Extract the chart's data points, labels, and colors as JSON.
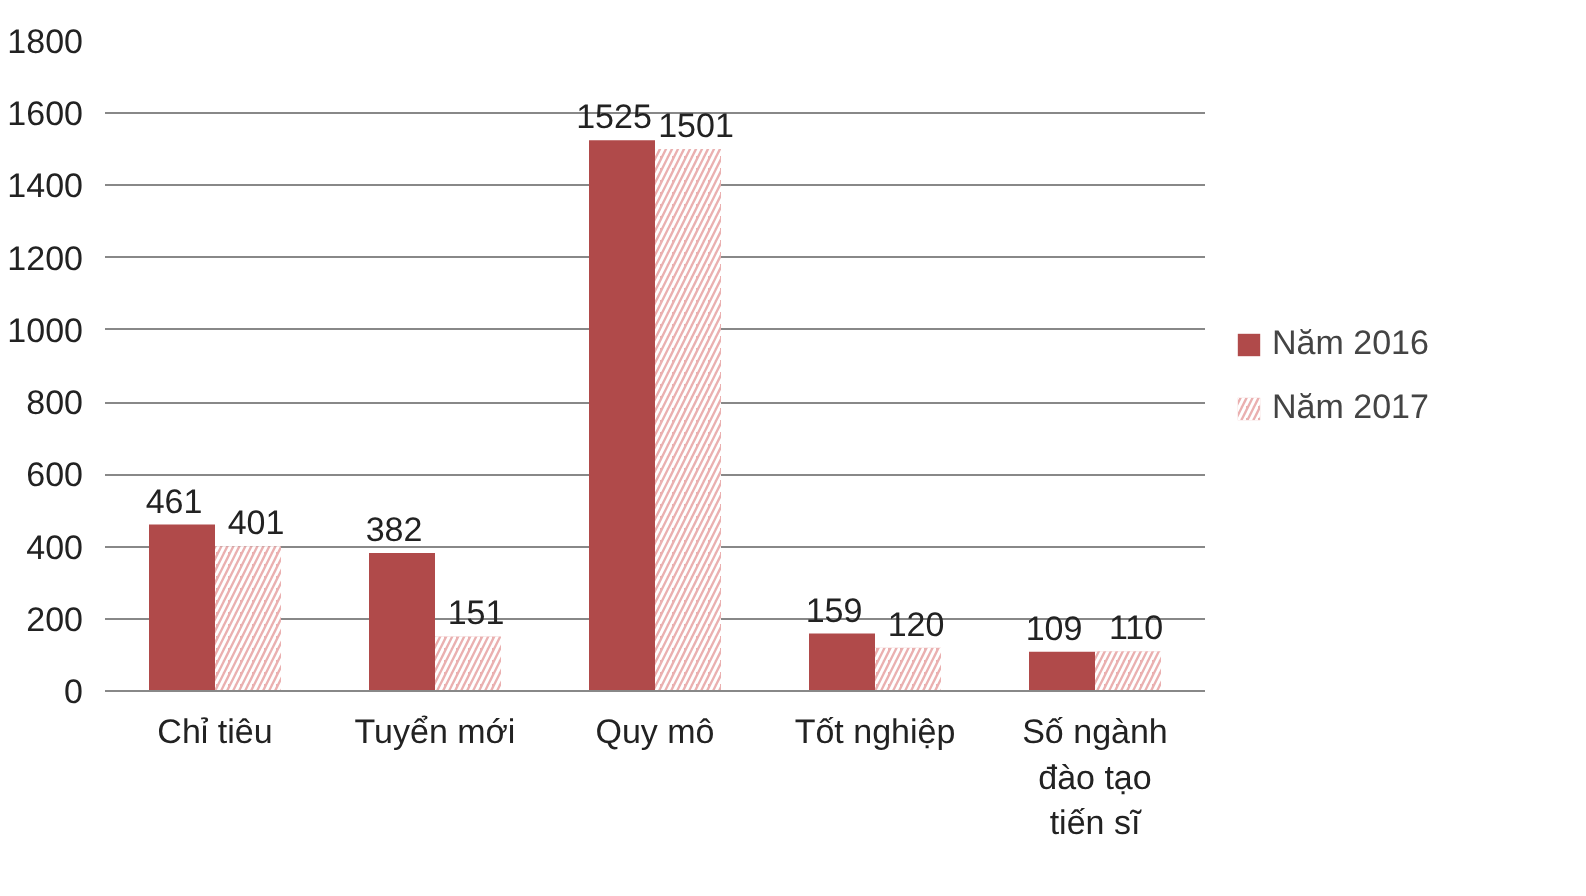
{
  "chart_data": {
    "type": "bar",
    "categories": [
      "Chỉ tiêu",
      "Tuyển mới",
      "Quy mô",
      "Tốt nghiệp",
      "Số ngành\nđào tạo\ntiến sĩ"
    ],
    "series": [
      {
        "name": "Năm 2016",
        "color": "#b04a4a",
        "values": [
          461,
          382,
          1525,
          159,
          109
        ]
      },
      {
        "name": "Năm 2017",
        "color": "#eab0b0",
        "values": [
          401,
          151,
          1501,
          120,
          110
        ]
      }
    ],
    "ylim": [
      0,
      1800
    ],
    "yticks": [
      0,
      200,
      400,
      600,
      800,
      1000,
      1200,
      1400,
      1600,
      1800
    ],
    "grid": "y",
    "legend": "right",
    "data_labels": true
  }
}
